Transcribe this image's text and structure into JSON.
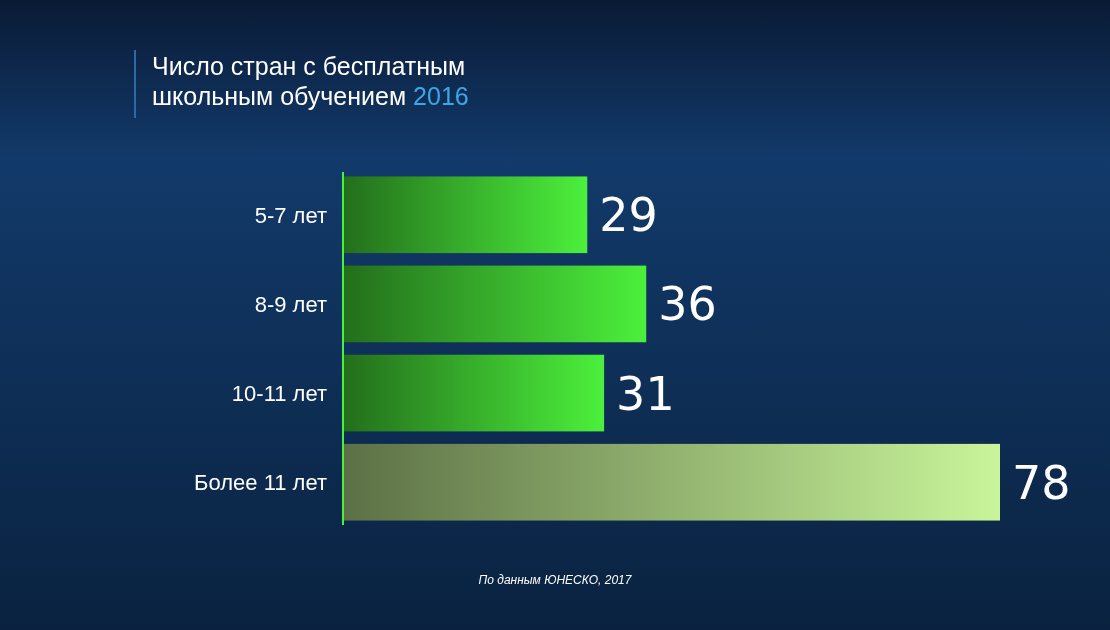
{
  "chart_data": {
    "type": "bar",
    "orientation": "horizontal",
    "title": "Число стран с бесплатным школьным обучением 2016",
    "categories": [
      "5-7 лет",
      "8-9 лет",
      "10-11 лет",
      "Более 11 лет"
    ],
    "values": [
      29,
      36,
      31,
      78
    ],
    "colors": [
      "#4cf03c",
      "#4cf03c",
      "#4cf03c",
      "#c9f59a"
    ],
    "data_labels": true,
    "annotations": [
      "По данным ЮНЕСКО, 2017"
    ]
  }
}
